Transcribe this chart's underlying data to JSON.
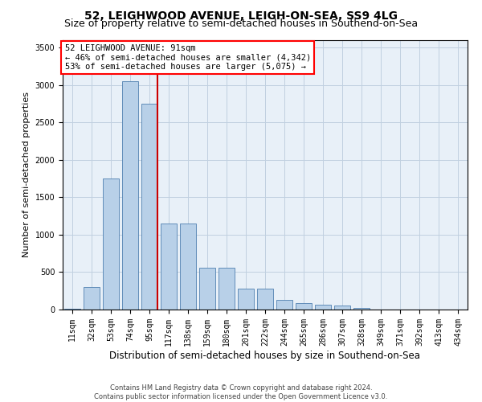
{
  "title": "52, LEIGHWOOD AVENUE, LEIGH-ON-SEA, SS9 4LG",
  "subtitle": "Size of property relative to semi-detached houses in Southend-on-Sea",
  "xlabel": "Distribution of semi-detached houses by size in Southend-on-Sea",
  "ylabel": "Number of semi-detached properties",
  "footer1": "Contains HM Land Registry data © Crown copyright and database right 2024.",
  "footer2": "Contains public sector information licensed under the Open Government Licence v3.0.",
  "categories": [
    "11sqm",
    "32sqm",
    "53sqm",
    "74sqm",
    "95sqm",
    "117sqm",
    "138sqm",
    "159sqm",
    "180sqm",
    "201sqm",
    "222sqm",
    "244sqm",
    "265sqm",
    "286sqm",
    "307sqm",
    "328sqm",
    "349sqm",
    "371sqm",
    "392sqm",
    "413sqm",
    "434sqm"
  ],
  "values": [
    15,
    300,
    1750,
    3050,
    2750,
    1150,
    1150,
    560,
    560,
    280,
    280,
    125,
    85,
    65,
    55,
    18,
    5,
    3,
    2,
    1,
    1
  ],
  "bar_color": "#b8d0e8",
  "bar_edge_color": "#5080b0",
  "grid_color": "#c0d0e0",
  "bg_color": "#e8f0f8",
  "annotation_text1": "52 LEIGHWOOD AVENUE: 91sqm",
  "annotation_text2": "← 46% of semi-detached houses are smaller (4,342)",
  "annotation_text3": "53% of semi-detached houses are larger (5,075) →",
  "vline_color": "#cc0000",
  "vline_x": 4.43,
  "ylim": [
    0,
    3600
  ],
  "yticks": [
    0,
    500,
    1000,
    1500,
    2000,
    2500,
    3000,
    3500
  ],
  "title_fontsize": 10,
  "subtitle_fontsize": 9,
  "xlabel_fontsize": 8.5,
  "ylabel_fontsize": 8,
  "tick_fontsize": 7,
  "annotation_fontsize": 7.5,
  "footer_fontsize": 6
}
